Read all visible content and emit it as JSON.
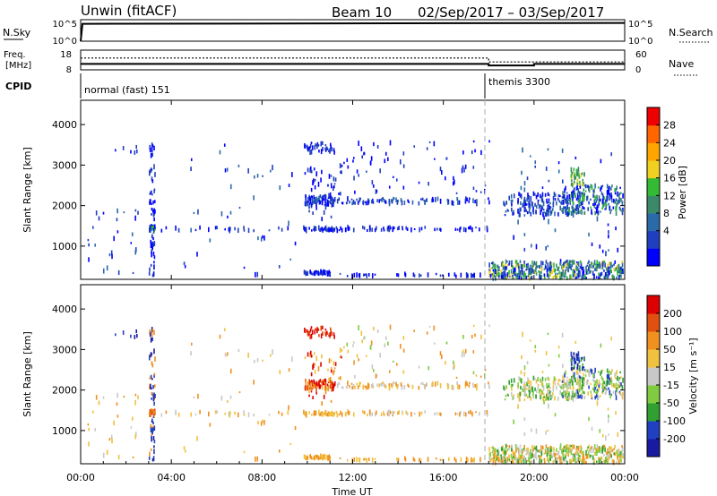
{
  "header": {
    "radar_title": "Unwin (fitACF)",
    "beam_title": "Beam 10",
    "date_range": "02/Sep/2017 – 03/Sep/2017"
  },
  "status_panels": {
    "nsky_label": "N.Sky",
    "nsky_ticks": [
      "10^5",
      "10^0"
    ],
    "nsearch_label": "N.Search",
    "nsearch_ticks": [
      "10^5",
      "10^0"
    ],
    "freq_label_1": "Freq.",
    "freq_label_2": "[MHz]",
    "freq_ticks": [
      "18",
      "8"
    ],
    "nave_label": "Nave",
    "nave_ticks": [
      "60",
      "0"
    ],
    "cpid_label": "CPID",
    "cpid_modes": [
      {
        "name": "normal (fast) 151",
        "start_hour": 0,
        "end_hour": 18
      },
      {
        "name": "themis 3300",
        "start_hour": 18,
        "end_hour": 24
      }
    ]
  },
  "panels": {
    "power": {
      "ylabel": "Slant Range [km]",
      "cbar_label": "Power [dB]",
      "cbar_ticks": [
        "28",
        "24",
        "20",
        "16",
        "12",
        "8",
        "4"
      ]
    },
    "velocity": {
      "ylabel": "Slant Range [km]",
      "cbar_label": "Velocity [m s⁻¹]",
      "cbar_ticks": [
        "200",
        "100",
        "50",
        "15",
        "-15",
        "-50",
        "-100",
        "-200"
      ]
    }
  },
  "xlabel": "Time UT",
  "chart_data": {
    "type": "heatmap",
    "x_ticks": [
      "00:00",
      "04:00",
      "08:00",
      "12:00",
      "16:00",
      "20:00",
      "00:00"
    ],
    "x_tick_hours": [
      0,
      4,
      8,
      12,
      16,
      20,
      24
    ],
    "xlim_hours": [
      0,
      24
    ],
    "ylim_km": [
      180,
      4600
    ],
    "y_ticks": [
      "1000",
      "2000",
      "3000",
      "4000"
    ],
    "y_tick_values": [
      1000,
      2000,
      3000,
      4000
    ],
    "power_colors": [
      "#0000ff",
      "#1f3fbf",
      "#2a6aa8",
      "#3a8a6a",
      "#33bb33",
      "#f0d020",
      "#ffa500",
      "#ff6600",
      "#ee0000"
    ],
    "velocity_colors": [
      "#1a1aa0",
      "#2040c0",
      "#30a030",
      "#80cc40",
      "#c8c8c8",
      "#f0c040",
      "#f09020",
      "#e05010",
      "#dd0000"
    ],
    "nsky_level_fraction": 0.85,
    "freq_mhz": [
      {
        "start_hour": 0,
        "end_hour": 18,
        "value": 11
      },
      {
        "start_hour": 18,
        "end_hour": 20,
        "value": 10.2
      },
      {
        "start_hour": 20,
        "end_hour": 24,
        "value": 11
      }
    ],
    "nave": [
      {
        "start_hour": 0,
        "end_hour": 18,
        "value": 36
      },
      {
        "start_hour": 18,
        "end_hour": 24,
        "value": 24
      }
    ]
  }
}
